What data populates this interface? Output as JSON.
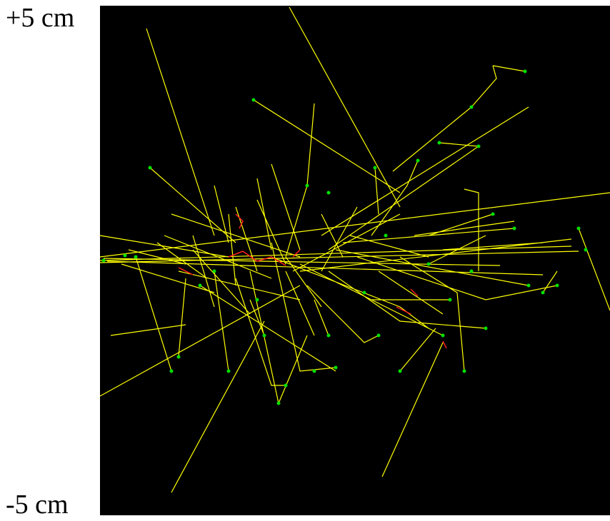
{
  "labels": {
    "top": "+5 cm",
    "bottom": "-5 cm"
  }
}
